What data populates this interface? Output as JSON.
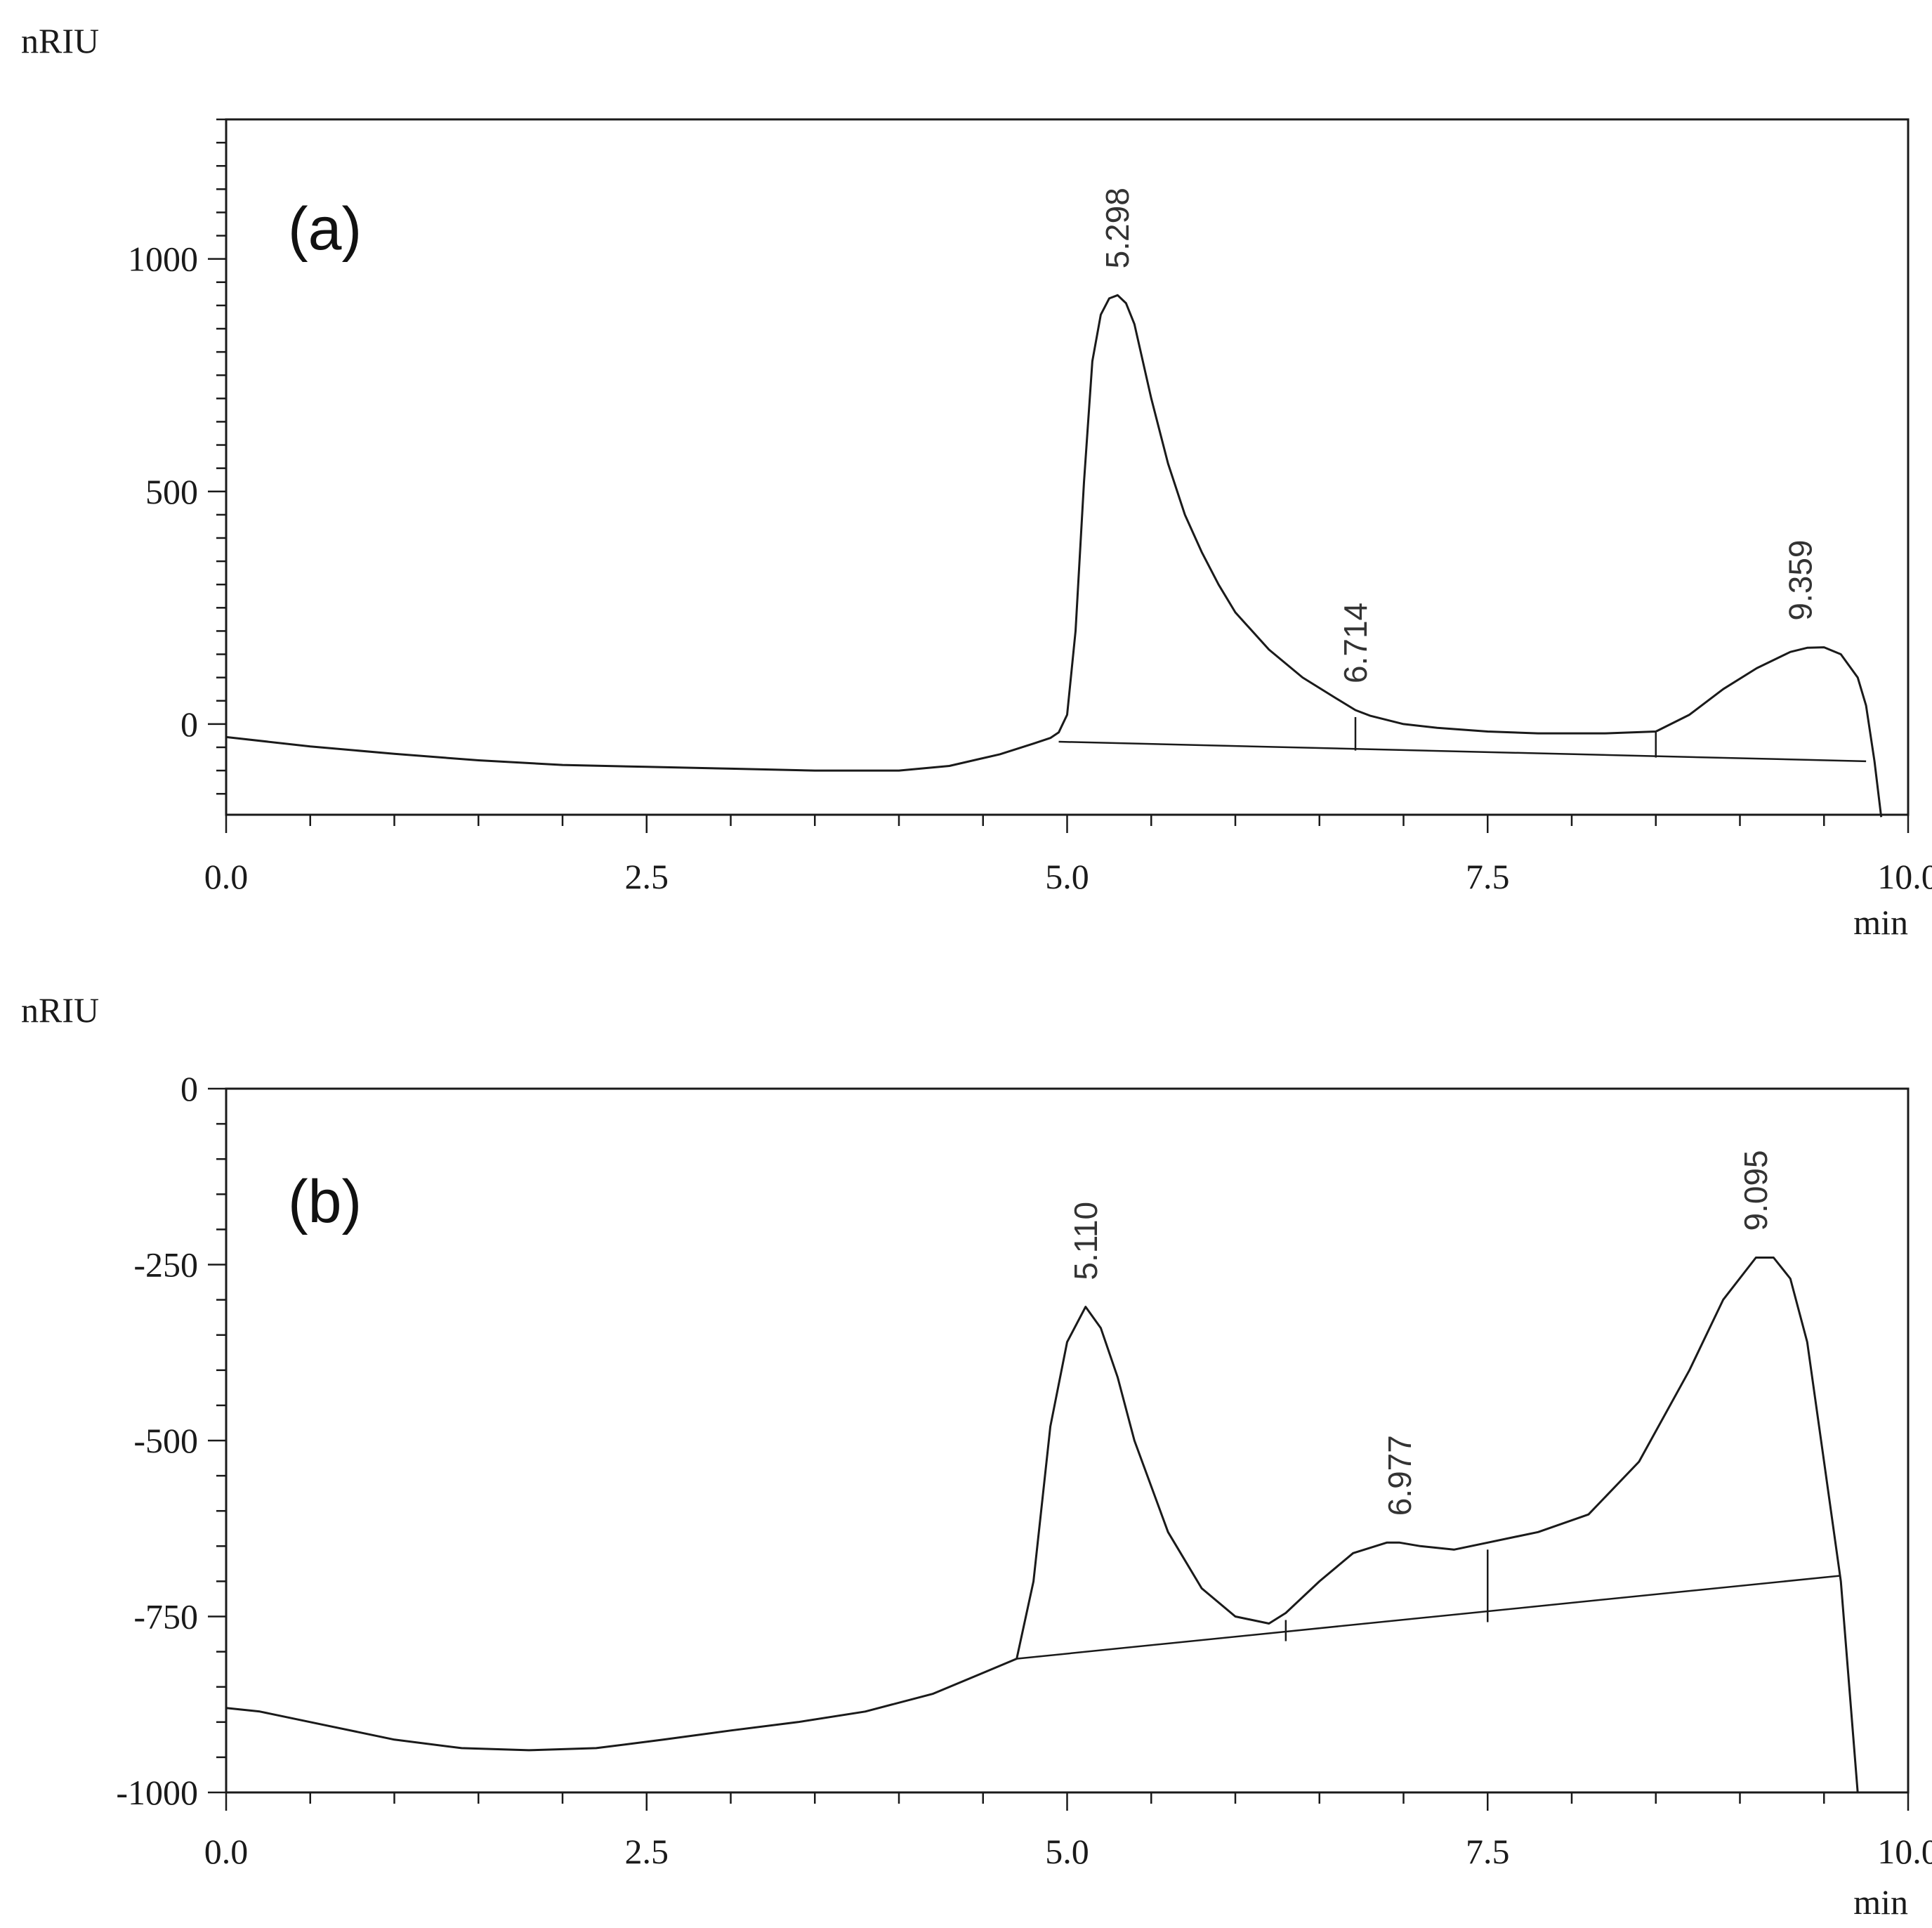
{
  "chart_data": [
    {
      "type": "line",
      "panel_label": "(a)",
      "ylabel": "nRIU",
      "xlabel": "min",
      "xlim": [
        0,
        10
      ],
      "ylim": [
        -195,
        1300
      ],
      "x_ticks": [
        0,
        2.5,
        5,
        7.5,
        10
      ],
      "x_tick_labels": [
        "0.0",
        "2.5",
        "5.0",
        "7.5",
        "10.0"
      ],
      "y_ticks": [
        0,
        500,
        1000
      ],
      "y_tick_labels": [
        "0",
        "500",
        "1000"
      ],
      "grid": false,
      "series": [
        {
          "x": [
            0,
            0.5,
            1.0,
            1.5,
            2.0,
            2.5,
            3.0,
            3.5,
            4.0,
            4.3,
            4.6,
            4.8,
            4.9,
            4.95,
            5.0,
            5.05,
            5.1,
            5.15,
            5.2,
            5.25,
            5.3,
            5.35,
            5.4,
            5.5,
            5.6,
            5.7,
            5.8,
            5.9,
            6.0,
            6.2,
            6.4,
            6.6,
            6.714,
            6.8,
            7.0,
            7.2,
            7.5,
            7.8,
            8.2,
            8.5,
            8.7,
            8.9,
            9.1,
            9.3,
            9.4,
            9.5,
            9.6,
            9.7,
            9.75,
            9.8,
            9.84
          ],
          "y": [
            -28,
            -48,
            -64,
            -78,
            -88,
            -92,
            -96,
            -100,
            -100,
            -90,
            -65,
            -42,
            -30,
            -18,
            20,
            200,
            520,
            780,
            880,
            915,
            922,
            905,
            860,
            700,
            560,
            450,
            370,
            300,
            240,
            160,
            100,
            55,
            30,
            18,
            0,
            -8,
            -16,
            -20,
            -20,
            -16,
            20,
            75,
            120,
            155,
            164,
            165,
            150,
            100,
            40,
            -80,
            -200
          ]
        }
      ],
      "baseline_segments": [
        {
          "x": [
            4.95,
            9.75
          ],
          "y": [
            -38,
            -80
          ]
        }
      ],
      "peak_markers": [
        {
          "x": 6.714,
          "y_top": 15,
          "y_bottom": -57
        },
        {
          "x": 8.5,
          "y_top": -18,
          "y_bottom": -72
        }
      ],
      "annotations": [
        {
          "x": 5.298,
          "y": 922,
          "text": "5.298"
        },
        {
          "x": 6.714,
          "y": 30,
          "text": "6.714"
        },
        {
          "x": 9.359,
          "y": 165,
          "text": "9.359"
        }
      ]
    },
    {
      "type": "line",
      "panel_label": "(b)",
      "ylabel": "nRIU",
      "xlabel": "min",
      "xlim": [
        0,
        10
      ],
      "ylim": [
        -1000,
        0
      ],
      "x_ticks": [
        0,
        2.5,
        5,
        7.5,
        10
      ],
      "x_tick_labels": [
        "0.0",
        "2.5",
        "5.0",
        "7.5",
        "10.0"
      ],
      "y_ticks": [
        0,
        -250,
        -500,
        -750,
        -1000
      ],
      "y_tick_labels": [
        "0",
        "-250",
        "-500",
        "-750",
        "-1000"
      ],
      "grid": false,
      "series": [
        {
          "x": [
            0,
            0.2,
            0.6,
            1.0,
            1.4,
            1.8,
            2.2,
            2.6,
            3.0,
            3.4,
            3.8,
            4.2,
            4.5,
            4.7,
            4.8,
            4.9,
            5.0,
            5.11,
            5.2,
            5.3,
            5.4,
            5.6,
            5.8,
            6.0,
            6.2,
            6.3,
            6.5,
            6.7,
            6.9,
            6.977,
            7.1,
            7.3,
            7.5,
            7.8,
            8.1,
            8.4,
            8.7,
            8.9,
            9.095,
            9.2,
            9.3,
            9.4,
            9.5,
            9.6,
            9.65,
            9.7
          ],
          "y": [
            -880,
            -885,
            -905,
            -925,
            -937,
            -940,
            -937,
            -925,
            -912,
            -900,
            -885,
            -860,
            -830,
            -810,
            -700,
            -480,
            -360,
            -310,
            -340,
            -410,
            -500,
            -630,
            -710,
            -750,
            -760,
            -745,
            -700,
            -660,
            -645,
            -645,
            -650,
            -655,
            -645,
            -630,
            -605,
            -530,
            -400,
            -300,
            -240,
            -240,
            -270,
            -360,
            -530,
            -700,
            -850,
            -1000
          ]
        }
      ],
      "baseline_segments": [
        {
          "x": [
            4.7,
            9.6
          ],
          "y": [
            -810,
            -692
          ]
        }
      ],
      "peak_markers": [
        {
          "x": 6.3,
          "y_top": -755,
          "y_bottom": -785
        },
        {
          "x": 7.5,
          "y_top": -655,
          "y_bottom": -758
        }
      ],
      "annotations": [
        {
          "x": 5.11,
          "y": -310,
          "text": "5.110"
        },
        {
          "x": 6.977,
          "y": -645,
          "text": "6.977"
        },
        {
          "x": 9.095,
          "y": -240,
          "text": "9.095"
        }
      ]
    }
  ]
}
